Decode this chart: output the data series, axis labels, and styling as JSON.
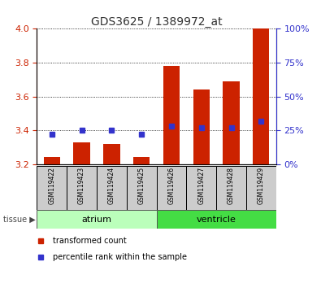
{
  "title": "GDS3625 / 1389972_at",
  "samples": [
    "GSM119422",
    "GSM119423",
    "GSM119424",
    "GSM119425",
    "GSM119426",
    "GSM119427",
    "GSM119428",
    "GSM119429"
  ],
  "tissue_groups": [
    {
      "label": "atrium",
      "color": "#bbffbb",
      "count": 4
    },
    {
      "label": "ventricle",
      "color": "#44dd44",
      "count": 4
    }
  ],
  "transformed_counts": [
    3.24,
    3.33,
    3.32,
    3.24,
    3.78,
    3.64,
    3.69,
    4.0
  ],
  "percentile_ranks": [
    22,
    25,
    25,
    22,
    28,
    27,
    27,
    32
  ],
  "y_min": 3.2,
  "y_max": 4.0,
  "y_ticks": [
    3.2,
    3.4,
    3.6,
    3.8,
    4.0
  ],
  "y2_ticks": [
    0,
    25,
    50,
    75,
    100
  ],
  "bar_color": "#cc2200",
  "dot_color": "#3333cc",
  "bar_bottom": 3.2,
  "bar_width": 0.55,
  "legend_items": [
    {
      "label": "transformed count",
      "color": "#cc2200"
    },
    {
      "label": "percentile rank within the sample",
      "color": "#3333cc"
    }
  ],
  "tissue_label": "tissue",
  "title_color": "#333333",
  "left_tick_color": "#cc2200",
  "right_tick_color": "#3333cc",
  "sample_box_color": "#cccccc"
}
